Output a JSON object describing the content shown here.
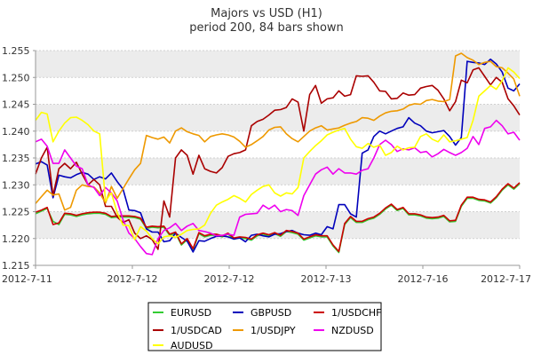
{
  "chart_data": {
    "type": "line",
    "title": "Majors vs USD (H1)",
    "subtitle": "period 200, 84 bars shown",
    "xlabel": "",
    "ylabel": "",
    "ylim": [
      1.215,
      1.255
    ],
    "yticks": [
      "1.215",
      "1.220",
      "1.225",
      "1.230",
      "1.235",
      "1.240",
      "1.245",
      "1.250",
      "1.255"
    ],
    "xticks": [
      "2012-7-11",
      "2012-7-12",
      "2012-7-12",
      "2012-7-13",
      "2012-7-16",
      "2012-7-17"
    ],
    "grid": true,
    "legend_position": "bottom",
    "series": [
      {
        "name": "EURUSD",
        "color": "#33cc33",
        "values": [
          1.2246,
          1.2251,
          1.2256,
          1.2232,
          1.2226,
          1.2245,
          1.2244,
          1.2241,
          1.2244,
          1.2246,
          1.2247,
          1.2247,
          1.2245,
          1.2239,
          1.224,
          1.224,
          1.224,
          1.2239,
          1.2236,
          1.2219,
          1.2221,
          1.222,
          1.2221,
          1.2206,
          1.221,
          1.2188,
          1.2198,
          1.2179,
          1.2209,
          1.2203,
          1.2206,
          1.2206,
          1.2203,
          1.2208,
          1.2199,
          1.2201,
          1.22,
          1.2197,
          1.2205,
          1.2208,
          1.2205,
          1.2209,
          1.2204,
          1.2213,
          1.2211,
          1.2208,
          1.2197,
          1.2201,
          1.2205,
          1.2203,
          1.2203,
          1.2186,
          1.2174,
          1.2226,
          1.2239,
          1.223,
          1.223,
          1.2235,
          1.2238,
          1.2245,
          1.2255,
          1.2262,
          1.2252,
          1.2256,
          1.2244,
          1.2244,
          1.2242,
          1.2238,
          1.2237,
          1.2238,
          1.2241,
          1.2231,
          1.2232,
          1.226,
          1.2275,
          1.2275,
          1.2271,
          1.227,
          1.2266,
          1.2276,
          1.229,
          1.23,
          1.2292,
          1.2302
        ]
      },
      {
        "name": "GBPUSD",
        "color": "#0000bb",
        "values": [
          1.2339,
          1.2343,
          1.2337,
          1.2276,
          1.2318,
          1.2315,
          1.2313,
          1.2319,
          1.2323,
          1.232,
          1.231,
          1.2315,
          1.2311,
          1.2322,
          1.2306,
          1.2292,
          1.2253,
          1.2252,
          1.2248,
          1.2218,
          1.2212,
          1.2212,
          1.2194,
          1.2196,
          1.221,
          1.2202,
          1.2195,
          1.2175,
          1.2196,
          1.2195,
          1.22,
          1.2204,
          1.2205,
          1.2203,
          1.2199,
          1.2201,
          1.2194,
          1.2206,
          1.2208,
          1.2205,
          1.2203,
          1.2208,
          1.2209,
          1.2213,
          1.2215,
          1.221,
          1.2207,
          1.2206,
          1.221,
          1.2207,
          1.2222,
          1.2218,
          1.2263,
          1.2263,
          1.2246,
          1.224,
          1.2359,
          1.2365,
          1.239,
          1.24,
          1.2395,
          1.24,
          1.2405,
          1.2408,
          1.2425,
          1.2415,
          1.241,
          1.24,
          1.2397,
          1.2399,
          1.2401,
          1.239,
          1.2374,
          1.2388,
          1.253,
          1.2528,
          1.2527,
          1.2524,
          1.2534,
          1.2525,
          1.251,
          1.248,
          1.2475,
          1.2488
        ]
      },
      {
        "name": "1/USDCHF",
        "color": "#cc0000",
        "values": [
          1.2249,
          1.2253,
          1.2258,
          1.2226,
          1.2229,
          1.2247,
          1.2246,
          1.2243,
          1.2246,
          1.2248,
          1.2249,
          1.2249,
          1.2247,
          1.2241,
          1.2242,
          1.2242,
          1.2242,
          1.2241,
          1.2238,
          1.2221,
          1.2223,
          1.2222,
          1.2223,
          1.2208,
          1.2212,
          1.219,
          1.22,
          1.2181,
          1.2211,
          1.2205,
          1.2208,
          1.2208,
          1.2205,
          1.221,
          1.2201,
          1.2203,
          1.2202,
          1.2199,
          1.2207,
          1.221,
          1.2207,
          1.2211,
          1.2206,
          1.2215,
          1.2213,
          1.221,
          1.2199,
          1.2203,
          1.2207,
          1.2205,
          1.2205,
          1.2188,
          1.2176,
          1.2228,
          1.2241,
          1.2232,
          1.2232,
          1.2237,
          1.224,
          1.2247,
          1.2257,
          1.2264,
          1.2254,
          1.2258,
          1.2246,
          1.2246,
          1.2244,
          1.224,
          1.2239,
          1.224,
          1.2243,
          1.2233,
          1.2234,
          1.2262,
          1.2277,
          1.2277,
          1.2273,
          1.2272,
          1.2268,
          1.2278,
          1.2292,
          1.2302,
          1.2294,
          1.2304
        ]
      },
      {
        "name": "1/USDCAD",
        "color": "#aa0000",
        "values": [
          1.232,
          1.235,
          1.237,
          1.228,
          1.233,
          1.234,
          1.233,
          1.2342,
          1.232,
          1.23,
          1.231,
          1.23,
          1.226,
          1.226,
          1.224,
          1.223,
          1.2235,
          1.221,
          1.22,
          1.2205,
          1.2198,
          1.218,
          1.227,
          1.224,
          1.235,
          1.2365,
          1.2355,
          1.232,
          1.2355,
          1.233,
          1.2325,
          1.2322,
          1.2332,
          1.2353,
          1.2358,
          1.236,
          1.2365,
          1.241,
          1.2418,
          1.2422,
          1.243,
          1.2439,
          1.244,
          1.2444,
          1.246,
          1.2454,
          1.24,
          1.2468,
          1.2485,
          1.2452,
          1.246,
          1.2462,
          1.2475,
          1.2465,
          1.2468,
          1.2503,
          1.2502,
          1.2503,
          1.2491,
          1.2475,
          1.2474,
          1.246,
          1.2461,
          1.2471,
          1.2467,
          1.2468,
          1.248,
          1.2483,
          1.2485,
          1.2476,
          1.246,
          1.2438,
          1.2455,
          1.2495,
          1.249,
          1.2514,
          1.2518,
          1.2502,
          1.2486,
          1.25,
          1.2491,
          1.246,
          1.2447,
          1.243
        ]
      },
      {
        "name": "1/USDJPY",
        "color": "#ee9900",
        "values": [
          1.2265,
          1.2278,
          1.229,
          1.2281,
          1.2283,
          1.2253,
          1.2258,
          1.229,
          1.23,
          1.2297,
          1.2296,
          1.2285,
          1.2266,
          1.2297,
          1.2275,
          1.2293,
          1.2311,
          1.2328,
          1.234,
          1.2392,
          1.2388,
          1.2385,
          1.2389,
          1.2378,
          1.24,
          1.2406,
          1.2399,
          1.2395,
          1.2392,
          1.238,
          1.239,
          1.2393,
          1.2395,
          1.2393,
          1.2389,
          1.2381,
          1.237,
          1.2375,
          1.2382,
          1.239,
          1.2402,
          1.2407,
          1.2408,
          1.2395,
          1.2386,
          1.238,
          1.239,
          1.24,
          1.2406,
          1.241,
          1.2402,
          1.2404,
          1.2406,
          1.2411,
          1.2415,
          1.2418,
          1.2425,
          1.2424,
          1.242,
          1.2428,
          1.2434,
          1.2437,
          1.2438,
          1.2441,
          1.2448,
          1.2451,
          1.245,
          1.2457,
          1.2459,
          1.2456,
          1.2455,
          1.2459,
          1.254,
          1.2545,
          1.2537,
          1.2532,
          1.2524,
          1.2528,
          1.253,
          1.252,
          1.2518,
          1.2508,
          1.2497,
          1.2465
        ]
      },
      {
        "name": "NZDUSD",
        "color": "#ee00ee",
        "values": [
          1.238,
          1.2385,
          1.2372,
          1.234,
          1.234,
          1.2365,
          1.235,
          1.2335,
          1.233,
          1.23,
          1.2295,
          1.228,
          1.2295,
          1.2285,
          1.227,
          1.2235,
          1.221,
          1.22,
          1.2185,
          1.2172,
          1.217,
          1.22,
          1.2215,
          1.222,
          1.2228,
          1.2215,
          1.2223,
          1.2228,
          1.2215,
          1.2213,
          1.221,
          1.2205,
          1.2206,
          1.2208,
          1.2206,
          1.224,
          1.2245,
          1.2246,
          1.2247,
          1.2262,
          1.2255,
          1.2262,
          1.225,
          1.2254,
          1.2252,
          1.2243,
          1.228,
          1.23,
          1.232,
          1.2328,
          1.2333,
          1.232,
          1.233,
          1.2322,
          1.2322,
          1.232,
          1.2327,
          1.233,
          1.235,
          1.2375,
          1.2383,
          1.2375,
          1.2362,
          1.2367,
          1.2365,
          1.2369,
          1.236,
          1.2362,
          1.2352,
          1.2358,
          1.2366,
          1.236,
          1.2355,
          1.236,
          1.2368,
          1.239,
          1.2375,
          1.2405,
          1.2408,
          1.242,
          1.241,
          1.2395,
          1.2398,
          1.2383
        ]
      },
      {
        "name": "AUDUSD",
        "color": "#ffff00",
        "values": [
          1.242,
          1.2435,
          1.2432,
          1.238,
          1.24,
          1.2415,
          1.2425,
          1.2426,
          1.242,
          1.2412,
          1.24,
          1.2395,
          1.227,
          1.2285,
          1.2248,
          1.2225,
          1.2224,
          1.2198,
          1.2222,
          1.2214,
          1.22,
          1.219,
          1.2203,
          1.2205,
          1.2202,
          1.2208,
          1.2215,
          1.2217,
          1.2218,
          1.2225,
          1.2247,
          1.2262,
          1.2268,
          1.2273,
          1.228,
          1.2275,
          1.2268,
          1.2282,
          1.229,
          1.2297,
          1.23,
          1.2285,
          1.2279,
          1.2285,
          1.2283,
          1.2295,
          1.235,
          1.2362,
          1.2373,
          1.2382,
          1.2393,
          1.2398,
          1.2402,
          1.2405,
          1.2385,
          1.2371,
          1.2368,
          1.2377,
          1.237,
          1.2374,
          1.2355,
          1.236,
          1.2372,
          1.2365,
          1.2369,
          1.237,
          1.239,
          1.2395,
          1.2385,
          1.238,
          1.2393,
          1.238,
          1.2382,
          1.2385,
          1.2388,
          1.242,
          1.2465,
          1.2475,
          1.2485,
          1.2478,
          1.2494,
          1.2518,
          1.251,
          1.2498
        ]
      }
    ]
  }
}
